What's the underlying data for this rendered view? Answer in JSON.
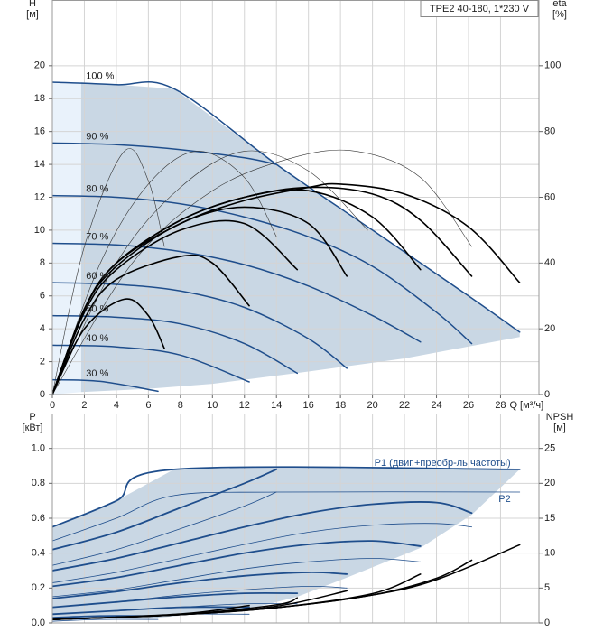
{
  "chart_data": [
    {
      "type": "line",
      "title": "TPE2 40-180, 1*230 V",
      "ylabel": "H",
      "yunit": "[м]",
      "y2label": "eta",
      "y2unit": "[%]",
      "xlabel": "Q [м³/ч]",
      "xlim": [
        0,
        30.4
      ],
      "ylim": [
        0,
        24
      ],
      "y2lim": [
        0,
        120
      ],
      "xticks": [
        0,
        2,
        4,
        6,
        8,
        10,
        12,
        14,
        16,
        18,
        20,
        22,
        24,
        26,
        28
      ],
      "yticks": [
        0,
        2,
        4,
        6,
        8,
        10,
        12,
        14,
        16,
        18,
        20
      ],
      "y2ticks": [
        0,
        20,
        40,
        60,
        80,
        100
      ],
      "grid": true,
      "regions": [
        {
          "color": "#e9f2fb",
          "x": [
            0,
            1.8,
            1.8,
            0
          ],
          "values": [
            19.0,
            19.0,
            0.15,
            0
          ]
        },
        {
          "color": "#c9d7e4",
          "x": [
            1.8,
            4,
            7.6,
            14,
            20,
            26,
            29.2,
            29.2,
            22,
            16,
            10,
            6,
            1.8
          ],
          "values": [
            19.0,
            18.85,
            18.6,
            14.0,
            10.0,
            6.0,
            3.8,
            3.5,
            2.2,
            1.4,
            0.65,
            0.35,
            0.15
          ]
        }
      ],
      "series": [
        {
          "name": "100 %",
          "color": "#1f4e8c",
          "width": 1.5,
          "x": [
            0,
            4,
            7.6,
            14,
            20,
            26,
            29.2
          ],
          "values": [
            19.0,
            18.85,
            18.6,
            14.0,
            10.0,
            6.0,
            3.8
          ]
        },
        {
          "name": "90 %",
          "color": "#1f4e8c",
          "width": 1.5,
          "x": [
            0,
            4,
            8,
            12,
            14
          ],
          "values": [
            15.3,
            15.2,
            14.9,
            14.4,
            14.0
          ]
        },
        {
          "name": "80 %",
          "color": "#1f4e8c",
          "width": 1.5,
          "x": [
            0,
            4,
            8,
            12,
            16,
            20,
            24,
            26.2
          ],
          "values": [
            12.1,
            12.0,
            11.6,
            10.8,
            9.6,
            7.8,
            5.0,
            3.1
          ]
        },
        {
          "name": "70 %",
          "color": "#1f4e8c",
          "width": 1.5,
          "x": [
            0,
            4,
            8,
            12,
            16,
            20,
            23
          ],
          "values": [
            9.2,
            9.1,
            8.7,
            7.9,
            6.6,
            4.8,
            3.2
          ]
        },
        {
          "name": "60 %",
          "color": "#1f4e8c",
          "width": 1.5,
          "x": [
            0,
            4,
            8,
            12,
            16,
            18.4
          ],
          "values": [
            6.8,
            6.7,
            6.3,
            5.3,
            3.4,
            1.6
          ]
        },
        {
          "name": "50 %",
          "color": "#1f4e8c",
          "width": 1.5,
          "x": [
            0,
            4,
            8,
            12,
            15.3
          ],
          "values": [
            4.8,
            4.7,
            4.3,
            3.1,
            1.3
          ]
        },
        {
          "name": "40 %",
          "color": "#1f4e8c",
          "width": 1.5,
          "x": [
            0,
            4,
            8,
            12.3
          ],
          "values": [
            3.0,
            2.9,
            2.4,
            0.77
          ]
        },
        {
          "name": "30 %",
          "color": "#1f4e8c",
          "width": 1.5,
          "x": [
            0,
            3,
            6.6
          ],
          "values": [
            0.9,
            0.8,
            0.2
          ]
        },
        {
          "axis": "y2",
          "color": "#333333",
          "width": 0.6,
          "x": [
            0,
            2,
            4.5,
            6,
            7
          ],
          "values": [
            0,
            45,
            74,
            65,
            45
          ]
        },
        {
          "axis": "y2",
          "color": "#333333",
          "width": 0.6,
          "x": [
            0,
            3,
            6,
            9,
            12,
            14
          ],
          "values": [
            0,
            40,
            64,
            74,
            66,
            48
          ]
        },
        {
          "axis": "y2",
          "color": "#333333",
          "width": 0.6,
          "x": [
            0,
            4,
            8,
            12,
            16,
            19.7
          ],
          "values": [
            0,
            40,
            63,
            74,
            68,
            50
          ]
        },
        {
          "axis": "y2",
          "color": "#333333",
          "width": 0.6,
          "x": [
            0,
            5,
            10,
            15,
            19,
            23,
            26.2
          ],
          "values": [
            0,
            40,
            62,
            72,
            74,
            66,
            45
          ]
        },
        {
          "axis": "y2",
          "color": "#000000",
          "width": 1.6,
          "x": [
            0,
            2,
            4,
            8,
            12,
            16,
            18,
            22,
            26,
            29.2
          ],
          "values": [
            0,
            26,
            40,
            52,
            59,
            63,
            64,
            61,
            51,
            34
          ]
        },
        {
          "axis": "y2",
          "color": "#000000",
          "width": 1.6,
          "x": [
            0,
            2,
            4,
            8,
            12,
            16,
            20,
            23,
            26.2
          ],
          "values": [
            0,
            26,
            40,
            53,
            60,
            63,
            61,
            53,
            36
          ]
        },
        {
          "axis": "y2",
          "color": "#000000",
          "width": 1.6,
          "x": [
            0,
            2,
            4,
            8,
            12,
            16,
            20,
            23
          ],
          "values": [
            0,
            26,
            40,
            53,
            60,
            62,
            54,
            38
          ]
        },
        {
          "axis": "y2",
          "color": "#000000",
          "width": 1.6,
          "x": [
            0,
            2,
            4,
            8,
            12,
            16,
            18.4
          ],
          "values": [
            0,
            26,
            39,
            52,
            57,
            52,
            36
          ]
        },
        {
          "axis": "y2",
          "color": "#000000",
          "width": 1.6,
          "x": [
            0,
            2,
            4,
            8,
            12,
            15.3
          ],
          "values": [
            0,
            25,
            38,
            50,
            52,
            38
          ]
        },
        {
          "axis": "y2",
          "color": "#000000",
          "width": 1.6,
          "x": [
            0,
            2,
            4,
            8,
            10,
            12.3
          ],
          "values": [
            0,
            23,
            35,
            42,
            40,
            27
          ]
        },
        {
          "axis": "y2",
          "color": "#000000",
          "width": 1.6,
          "x": [
            0,
            2,
            4.5,
            6,
            7
          ],
          "values": [
            0,
            20,
            29,
            24,
            14
          ]
        }
      ]
    },
    {
      "type": "line",
      "ylabel": "P",
      "yunit": "[кВт]",
      "y2label": "NPSH",
      "y2unit": "[м]",
      "xlim": [
        0,
        30.4
      ],
      "ylim": [
        0,
        1.2
      ],
      "y2lim": [
        0,
        30
      ],
      "yticks": [
        {
          "value": 0,
          "label": "0.0"
        },
        0.2,
        0.4,
        0.6,
        0.8,
        {
          "value": 1,
          "label": "1.0"
        }
      ],
      "y2ticks": [
        0,
        5,
        10,
        15,
        20,
        25
      ],
      "grid": true,
      "regions": [
        {
          "color": "#c9d7e4",
          "x": [
            0,
            4,
            7.6,
            29.2,
            26.2,
            23,
            18.4,
            15.3,
            12.3,
            6.6,
            0
          ],
          "values": [
            0.55,
            0.7,
            0.88,
            0.88,
            0.62,
            0.43,
            0.26,
            0.15,
            0.08,
            0.03,
            0.02
          ]
        }
      ],
      "series": [
        {
          "name": "P1 (двиг.+преобр-ль частоты)",
          "color": "#1f4e8c",
          "width": 1.8,
          "x": [
            0,
            4,
            7.6,
            29.2
          ],
          "values": [
            0.55,
            0.7,
            0.88,
            0.88
          ]
        },
        {
          "color": "#1f4e8c",
          "width": 1.8,
          "x": [
            0,
            4,
            8,
            12,
            14
          ],
          "values": [
            0.42,
            0.52,
            0.66,
            0.8,
            0.88
          ]
        },
        {
          "color": "#1f4e8c",
          "width": 1.8,
          "x": [
            0,
            4,
            8,
            12,
            16,
            20,
            24,
            26.2
          ],
          "values": [
            0.3,
            0.37,
            0.46,
            0.55,
            0.63,
            0.68,
            0.69,
            0.63
          ]
        },
        {
          "color": "#1f4e8c",
          "width": 1.8,
          "x": [
            0,
            4,
            8,
            12,
            16,
            20,
            23
          ],
          "values": [
            0.21,
            0.26,
            0.33,
            0.4,
            0.45,
            0.47,
            0.44
          ]
        },
        {
          "color": "#1f4e8c",
          "width": 1.8,
          "x": [
            0,
            4,
            8,
            12,
            16,
            18.4
          ],
          "values": [
            0.14,
            0.18,
            0.23,
            0.27,
            0.29,
            0.28
          ]
        },
        {
          "color": "#1f4e8c",
          "width": 1.8,
          "x": [
            0,
            4,
            8,
            12,
            15.3
          ],
          "values": [
            0.09,
            0.12,
            0.15,
            0.17,
            0.17
          ]
        },
        {
          "color": "#1f4e8c",
          "width": 1.8,
          "x": [
            0,
            4,
            8,
            12.3
          ],
          "values": [
            0.05,
            0.07,
            0.09,
            0.09
          ]
        },
        {
          "color": "#1f4e8c",
          "width": 1.8,
          "x": [
            0,
            3,
            6.6
          ],
          "values": [
            0.03,
            0.04,
            0.04
          ]
        },
        {
          "name": "P2",
          "color": "#1f4e8c",
          "width": 0.8,
          "x": [
            0,
            4,
            7.6,
            14,
            29.2
          ],
          "values": [
            0.47,
            0.6,
            0.73,
            0.75,
            0.75
          ]
        },
        {
          "color": "#1f4e8c",
          "width": 0.8,
          "x": [
            0,
            4,
            8,
            12,
            14
          ],
          "values": [
            0.33,
            0.42,
            0.54,
            0.67,
            0.75
          ]
        },
        {
          "color": "#1f4e8c",
          "width": 0.8,
          "x": [
            0,
            4,
            8,
            12,
            16,
            20,
            24,
            26.2
          ],
          "values": [
            0.23,
            0.29,
            0.37,
            0.45,
            0.52,
            0.56,
            0.57,
            0.55
          ]
        },
        {
          "color": "#1f4e8c",
          "width": 0.8,
          "x": [
            0,
            4,
            8,
            12,
            16,
            20,
            23
          ],
          "values": [
            0.15,
            0.19,
            0.25,
            0.31,
            0.35,
            0.37,
            0.35
          ]
        },
        {
          "color": "#1f4e8c",
          "width": 0.8,
          "x": [
            0,
            4,
            8,
            12,
            16,
            18.4
          ],
          "values": [
            0.09,
            0.12,
            0.16,
            0.19,
            0.21,
            0.2
          ]
        },
        {
          "color": "#1f4e8c",
          "width": 0.8,
          "x": [
            0,
            4,
            8,
            12,
            15.3
          ],
          "values": [
            0.05,
            0.07,
            0.09,
            0.11,
            0.11
          ]
        },
        {
          "color": "#1f4e8c",
          "width": 0.8,
          "x": [
            0,
            4,
            8,
            12.3
          ],
          "values": [
            0.02,
            0.03,
            0.05,
            0.05
          ]
        },
        {
          "color": "#1f4e8c",
          "width": 0.8,
          "x": [
            0,
            3,
            6.6
          ],
          "values": [
            0.01,
            0.02,
            0.02
          ]
        },
        {
          "axis": "y2",
          "color": "#000000",
          "width": 1.5,
          "x": [
            0,
            8,
            14,
            20,
            24,
            29.2
          ],
          "values": [
            0.5,
            1.2,
            2.2,
            4.0,
            6.2,
            11.2
          ]
        },
        {
          "axis": "y2",
          "color": "#000000",
          "width": 1.5,
          "x": [
            0,
            8,
            14,
            20,
            24,
            26.2
          ],
          "values": [
            0.5,
            1.2,
            2.2,
            4.0,
            6.4,
            9.0
          ]
        },
        {
          "axis": "y2",
          "color": "#000000",
          "width": 1.5,
          "x": [
            0,
            8,
            14,
            20,
            23
          ],
          "values": [
            0.5,
            1.2,
            2.2,
            4.2,
            7.0
          ]
        },
        {
          "axis": "y2",
          "color": "#000000",
          "width": 1.5,
          "x": [
            0,
            8,
            14,
            18.4
          ],
          "values": [
            0.5,
            1.2,
            2.4,
            4.6
          ]
        },
        {
          "axis": "y2",
          "color": "#000000",
          "width": 1.5,
          "x": [
            0,
            8,
            14,
            15.3
          ],
          "values": [
            0.5,
            1.2,
            2.6,
            3.6
          ]
        },
        {
          "axis": "y2",
          "color": "#000000",
          "width": 1.5,
          "x": [
            0,
            8,
            12.3
          ],
          "values": [
            0.5,
            1.3,
            2.5
          ]
        }
      ]
    }
  ]
}
